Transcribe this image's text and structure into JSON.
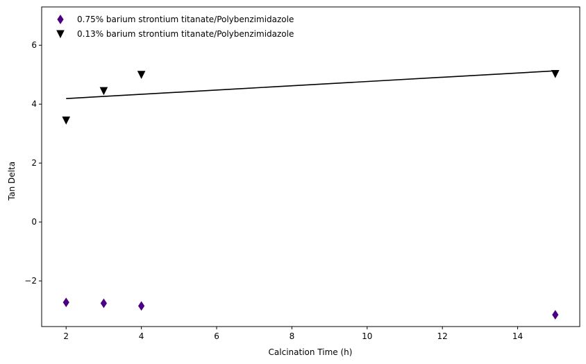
{
  "chart_data": {
    "type": "scatter",
    "title": "",
    "xlabel": "Calcination Time (h)",
    "ylabel": "Tan Delta",
    "xlim": [
      1.35,
      15.65
    ],
    "ylim": [
      -3.55,
      7.3
    ],
    "xticks": [
      2,
      4,
      6,
      8,
      10,
      12,
      14
    ],
    "yticks": [
      -2,
      0,
      2,
      4,
      6
    ],
    "grid": false,
    "legend_position": "top-left",
    "series": [
      {
        "name": "0.75% barium strontium titanate/Polybenzimidazole",
        "marker": "thin-diamond",
        "color": "#4b0082",
        "points": [
          {
            "x": 2,
            "y": -2.73
          },
          {
            "x": 3,
            "y": -2.76
          },
          {
            "x": 4,
            "y": -2.85
          },
          {
            "x": 15,
            "y": -3.15
          }
        ]
      },
      {
        "name": "0.13% barium strontium titanate/Polybenzimidazole",
        "marker": "triangle-down",
        "color": "#000000",
        "points": [
          {
            "x": 2,
            "y": 3.45
          },
          {
            "x": 3,
            "y": 4.45
          },
          {
            "x": 4,
            "y": 5.0
          },
          {
            "x": 15,
            "y": 5.03
          }
        ]
      }
    ],
    "fit_line": {
      "color": "#000000",
      "points": [
        {
          "x": 2,
          "y": 4.19
        },
        {
          "x": 15,
          "y": 5.13
        }
      ]
    }
  }
}
